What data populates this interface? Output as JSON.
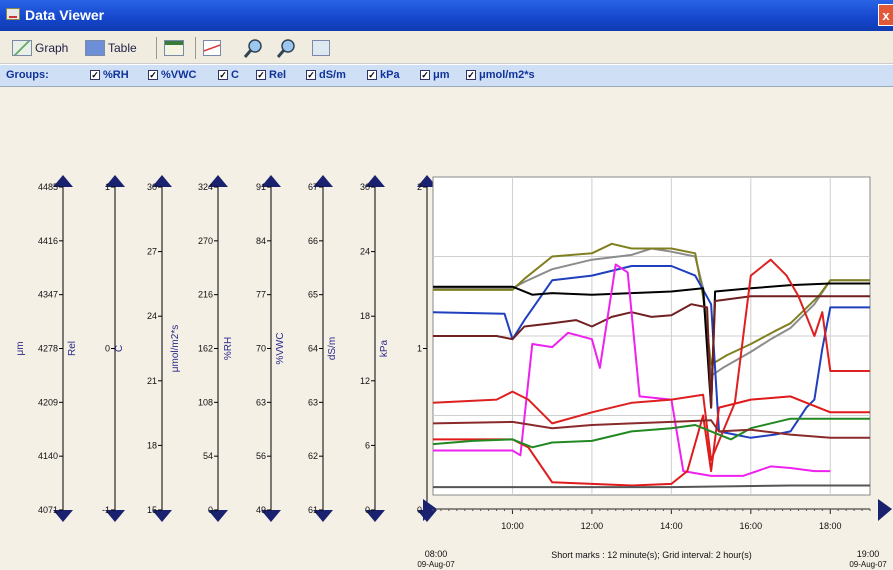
{
  "window": {
    "title": "Data Viewer",
    "close_symbol": "x"
  },
  "toolbar": {
    "graph_label": "Graph",
    "table_label": "Table"
  },
  "groups": {
    "label": "Groups:",
    "items": [
      "%RH",
      "%VWC",
      "C",
      "Rel",
      "dS/m",
      "kPa",
      "μm",
      "μmol/m2*s"
    ]
  },
  "axes": [
    {
      "label": "μm",
      "ticks": [
        "4485",
        "4416",
        "4347",
        "4278",
        "4209",
        "4140",
        "4071"
      ]
    },
    {
      "label": "Rel",
      "ticks": [
        "1",
        "0",
        "-1"
      ]
    },
    {
      "label": "C",
      "ticks": [
        "30",
        "27",
        "24",
        "21",
        "18",
        "15"
      ]
    },
    {
      "label": "μmol/m2*s",
      "ticks": [
        "324",
        "270",
        "216",
        "162",
        "108",
        "54",
        "0"
      ]
    },
    {
      "label": "%RH",
      "ticks": [
        "91",
        "84",
        "77",
        "70",
        "63",
        "56",
        "49"
      ]
    },
    {
      "label": "%VWC",
      "ticks": [
        "67",
        "66",
        "65",
        "64",
        "63",
        "62",
        "61"
      ]
    },
    {
      "label": "dS/m",
      "ticks": [
        "30",
        "24",
        "18",
        "12",
        "6",
        "0"
      ]
    },
    {
      "label": "kPa",
      "ticks": [
        "2",
        "1",
        "0"
      ]
    }
  ],
  "time_axis": {
    "ticks": [
      "10:00",
      "12:00",
      "14:00",
      "16:00",
      "18:00"
    ],
    "start_label": "08:00",
    "start_date": "09-Aug-07",
    "end_label": "19:00",
    "end_date": "09-Aug-07",
    "info": "Short marks : 12 minute(s); Grid interval: 2 hour(s)"
  },
  "chart_data": {
    "type": "line",
    "x_label": "",
    "y_label": "",
    "x_range": [
      8,
      19
    ],
    "y_range_kpa": [
      0,
      2
    ],
    "x_ticks": [
      10,
      12,
      14,
      16,
      18
    ],
    "grid": true,
    "series": [
      {
        "color": "#8c8c8c",
        "points": [
          [
            8,
            1.3
          ],
          [
            10,
            1.3
          ],
          [
            10.3,
            1.34
          ],
          [
            11,
            1.42
          ],
          [
            12,
            1.48
          ],
          [
            13,
            1.51
          ],
          [
            13.5,
            1.55
          ],
          [
            14,
            1.53
          ],
          [
            14.6,
            1.5
          ],
          [
            14.8,
            1.3
          ],
          [
            15,
            0.75
          ],
          [
            15.3,
            0.8
          ],
          [
            16,
            0.9
          ],
          [
            16.5,
            0.98
          ],
          [
            17,
            1.05
          ],
          [
            17.6,
            1.2
          ],
          [
            18,
            1.35
          ],
          [
            19,
            1.35
          ]
        ]
      },
      {
        "color": "#808020",
        "points": [
          [
            8,
            1.29
          ],
          [
            10,
            1.29
          ],
          [
            10.3,
            1.36
          ],
          [
            11,
            1.5
          ],
          [
            12,
            1.52
          ],
          [
            12.5,
            1.58
          ],
          [
            13,
            1.55
          ],
          [
            14,
            1.55
          ],
          [
            14.6,
            1.52
          ],
          [
            14.8,
            1.25
          ],
          [
            15,
            0.82
          ],
          [
            15.4,
            0.88
          ],
          [
            16,
            0.95
          ],
          [
            16.6,
            1.03
          ],
          [
            17,
            1.08
          ],
          [
            17.7,
            1.25
          ],
          [
            18,
            1.35
          ],
          [
            19,
            1.35
          ]
        ]
      },
      {
        "color": "#1f3fbf",
        "points": [
          [
            8,
            1.15
          ],
          [
            9.8,
            1.14
          ],
          [
            10,
            0.98
          ],
          [
            10.3,
            1.1
          ],
          [
            11,
            1.35
          ],
          [
            12,
            1.38
          ],
          [
            13,
            1.44
          ],
          [
            14,
            1.44
          ],
          [
            14.6,
            1.38
          ],
          [
            15,
            1.2
          ],
          [
            15.2,
            0.4
          ],
          [
            15.6,
            0.38
          ],
          [
            16,
            0.36
          ],
          [
            16.6,
            0.38
          ],
          [
            17,
            0.4
          ],
          [
            17.4,
            0.55
          ],
          [
            17.6,
            0.6
          ],
          [
            17.8,
            0.92
          ],
          [
            18,
            1.18
          ],
          [
            19,
            1.18
          ]
        ]
      },
      {
        "color": "#000000",
        "points": [
          [
            8,
            1.31
          ],
          [
            10,
            1.31
          ],
          [
            10.5,
            1.26
          ],
          [
            11,
            1.27
          ],
          [
            12,
            1.26
          ],
          [
            13,
            1.27
          ],
          [
            14,
            1.28
          ],
          [
            14.8,
            1.3
          ],
          [
            15,
            0.55
          ],
          [
            15.1,
            1.28
          ],
          [
            16,
            1.3
          ],
          [
            17,
            1.32
          ],
          [
            18,
            1.33
          ],
          [
            19,
            1.33
          ]
        ]
      },
      {
        "color": "#702020",
        "points": [
          [
            8,
            1.0
          ],
          [
            9.6,
            1.0
          ],
          [
            10,
            0.98
          ],
          [
            10.3,
            1.06
          ],
          [
            11,
            1.08
          ],
          [
            11.6,
            1.1
          ],
          [
            12,
            1.06
          ],
          [
            12.5,
            1.12
          ],
          [
            13,
            1.15
          ],
          [
            13.5,
            1.12
          ],
          [
            14,
            1.13
          ],
          [
            14.5,
            1.2
          ],
          [
            14.9,
            1.18
          ],
          [
            15,
            0.55
          ],
          [
            15.1,
            1.22
          ],
          [
            16,
            1.25
          ],
          [
            17,
            1.25
          ],
          [
            18,
            1.25
          ],
          [
            19,
            1.25
          ]
        ]
      },
      {
        "color": "#ee22ee",
        "points": [
          [
            8,
            0.28
          ],
          [
            10,
            0.28
          ],
          [
            10.2,
            0.25
          ],
          [
            10.5,
            0.95
          ],
          [
            11,
            0.93
          ],
          [
            11.4,
            1.02
          ],
          [
            12,
            0.98
          ],
          [
            12.2,
            0.8
          ],
          [
            12.6,
            1.45
          ],
          [
            12.9,
            1.4
          ],
          [
            13.2,
            0.62
          ],
          [
            14,
            0.6
          ],
          [
            14.3,
            0.15
          ],
          [
            15,
            0.12
          ],
          [
            15.8,
            0.12
          ],
          [
            16.5,
            0.18
          ],
          [
            17,
            0.17
          ],
          [
            17.6,
            0.15
          ],
          [
            18,
            0.15
          ]
        ]
      },
      {
        "color": "#dd2020",
        "points": [
          [
            8,
            0.58
          ],
          [
            9.6,
            0.6
          ],
          [
            10,
            0.65
          ],
          [
            10.4,
            0.6
          ],
          [
            11,
            0.45
          ],
          [
            12,
            0.52
          ],
          [
            13,
            0.58
          ],
          [
            14,
            0.6
          ],
          [
            14.8,
            0.63
          ],
          [
            15,
            0.22
          ],
          [
            15.6,
            0.58
          ],
          [
            16,
            1.38
          ],
          [
            16.5,
            1.48
          ],
          [
            16.9,
            1.38
          ],
          [
            17.2,
            1.25
          ],
          [
            17.6,
            1.0
          ],
          [
            17.8,
            1.15
          ],
          [
            18,
            0.78
          ],
          [
            19,
            0.78
          ]
        ]
      },
      {
        "color": "#e01a1a",
        "points": [
          [
            8,
            0.35
          ],
          [
            10,
            0.35
          ],
          [
            10.4,
            0.3
          ],
          [
            11,
            0.08
          ],
          [
            12,
            0.07
          ],
          [
            13,
            0.06
          ],
          [
            14,
            0.07
          ],
          [
            14.4,
            0.15
          ],
          [
            14.8,
            0.5
          ],
          [
            15,
            0.15
          ],
          [
            15.2,
            0.55
          ],
          [
            16,
            0.6
          ],
          [
            17,
            0.62
          ],
          [
            18,
            0.52
          ],
          [
            19,
            0.52
          ]
        ]
      },
      {
        "color": "#228822",
        "points": [
          [
            8,
            0.32
          ],
          [
            9,
            0.34
          ],
          [
            10,
            0.35
          ],
          [
            10.5,
            0.3
          ],
          [
            11,
            0.33
          ],
          [
            12,
            0.34
          ],
          [
            13,
            0.4
          ],
          [
            14,
            0.42
          ],
          [
            14.6,
            0.44
          ],
          [
            15,
            0.4
          ],
          [
            15.5,
            0.35
          ],
          [
            16,
            0.42
          ],
          [
            17,
            0.48
          ],
          [
            18,
            0.48
          ],
          [
            19,
            0.48
          ]
        ]
      },
      {
        "color": "#8b2a2a",
        "points": [
          [
            8,
            0.45
          ],
          [
            10,
            0.46
          ],
          [
            11,
            0.42
          ],
          [
            12,
            0.44
          ],
          [
            13,
            0.45
          ],
          [
            14,
            0.46
          ],
          [
            15,
            0.47
          ],
          [
            15.2,
            0.4
          ],
          [
            16,
            0.41
          ],
          [
            17,
            0.38
          ],
          [
            18,
            0.36
          ],
          [
            19,
            0.36
          ]
        ]
      },
      {
        "color": "#555555",
        "points": [
          [
            8,
            0.05
          ],
          [
            11,
            0.05
          ],
          [
            14,
            0.05
          ],
          [
            17,
            0.06
          ],
          [
            19,
            0.06
          ]
        ]
      }
    ]
  }
}
